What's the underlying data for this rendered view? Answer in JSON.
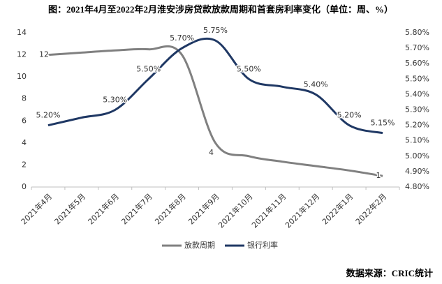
{
  "chart_data": {
    "type": "line",
    "title": "图：2021年4月至2022年2月淮安涉房贷款放款周期和首套房利率变化（单位：周、%）",
    "categories": [
      "2021年4月",
      "2021年5月",
      "2021年6月",
      "2021年7月",
      "2021年8月",
      "2021年9月",
      "2021年10月",
      "2021年11月",
      "2021年12月",
      "2022年1月",
      "2022年2月"
    ],
    "series": [
      {
        "name": "放款周期",
        "color": "#808080",
        "values": [
          12,
          12.2,
          12.4,
          12.5,
          12,
          4,
          2.8,
          2.3,
          1.9,
          1.5,
          1
        ],
        "value_labels": [
          "12",
          null,
          null,
          null,
          null,
          "4",
          null,
          null,
          null,
          null,
          "1"
        ]
      },
      {
        "name": "银行利率",
        "color": "#1f3864",
        "axis": "y2",
        "values": [
          5.2,
          5.25,
          5.3,
          5.5,
          5.7,
          5.75,
          5.5,
          5.45,
          5.4,
          5.2,
          5.15
        ],
        "value_labels": [
          "5.20%",
          null,
          "5.30%",
          "5.50%",
          "5.70%",
          "5.75%",
          "5.50%",
          null,
          "5.40%",
          "5.20%",
          "5.15%"
        ]
      }
    ],
    "ylim": [
      0,
      14
    ],
    "yticks": [
      0,
      2,
      4,
      6,
      8,
      10,
      12,
      14
    ],
    "y2lim": [
      4.8,
      5.8
    ],
    "y2ticks": [
      {
        "value": 4.8,
        "label": "4.80%"
      },
      {
        "value": 4.9,
        "label": "4.90%"
      },
      {
        "value": 5.0,
        "label": "5.00%"
      },
      {
        "value": 5.1,
        "label": "5.10%"
      },
      {
        "value": 5.2,
        "label": "5.20%"
      },
      {
        "value": 5.3,
        "label": "5.30%"
      },
      {
        "value": 5.4,
        "label": "5.40%"
      },
      {
        "value": 5.5,
        "label": "5.50%"
      },
      {
        "value": 5.6,
        "label": "5.60%"
      },
      {
        "value": 5.7,
        "label": "5.70%"
      },
      {
        "value": 5.8,
        "label": "5.80%"
      }
    ],
    "grid": false,
    "legend": "bottom",
    "source": "数据来源：CRIC统计"
  }
}
